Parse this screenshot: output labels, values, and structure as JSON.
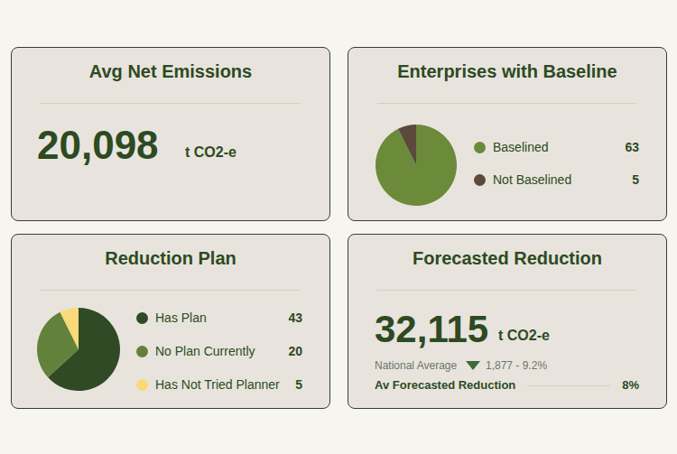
{
  "avg_net_emissions": {
    "title": "Avg Net Emissions",
    "value": 20098,
    "value_label": "20,098",
    "unit": "t CO2-e"
  },
  "chart_data": [
    {
      "type": "pie",
      "title": "Enterprises with Baseline",
      "categories": [
        "Baselined",
        "Not Baselined"
      ],
      "values": [
        63,
        5
      ],
      "colors": [
        "#6b8a3a",
        "#5b4a3c"
      ],
      "data_labels": true
    },
    {
      "type": "pie",
      "title": "Reduction Plan",
      "categories": [
        "Has Plan",
        "No Plan Currently",
        "Has Not Tried Planner"
      ],
      "values": [
        43,
        20,
        5
      ],
      "colors": [
        "#2f4a25",
        "#62813a",
        "#fad97a"
      ],
      "data_labels": true
    }
  ],
  "forecasted_reduction": {
    "title": "Forecasted Reduction",
    "value": 32115,
    "value_label": "32,115",
    "unit": "t CO2-e",
    "national_average": {
      "label": "National Average",
      "change": 1877,
      "change_pct": 9.2,
      "value_label": "1,877 - 9.2%"
    },
    "av_forecasted_reduction": {
      "label": "Av Forecasted Reduction",
      "value": 8,
      "value_label": "8%"
    }
  }
}
